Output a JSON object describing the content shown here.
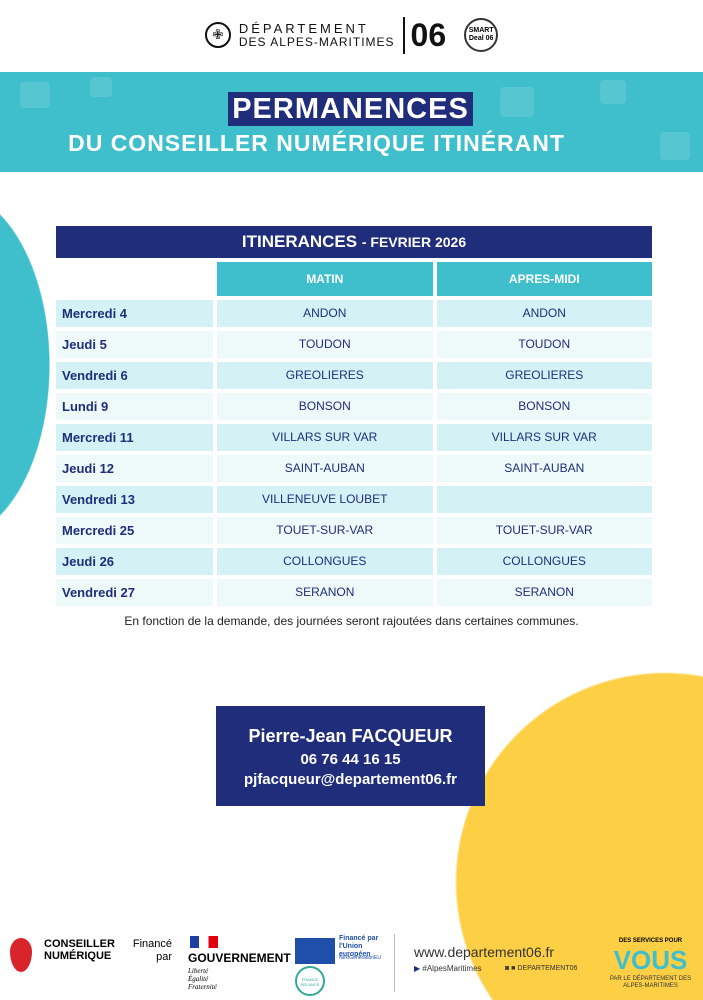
{
  "header": {
    "org_line1": "DÉPARTEMENT",
    "org_line2": "DES ALPES-MARITIMES",
    "org_number": "06",
    "smart_deal": "SMART Deal 06"
  },
  "banner": {
    "title": "PERMANENCES",
    "subtitle": "DU CONSEILLER NUMÉRIQUE ITINÉRANT"
  },
  "table": {
    "title": "ITINERANCES",
    "title_month": "- FEVRIER 2026",
    "columns": [
      "MATIN",
      "APRES-MIDI"
    ],
    "rows": [
      {
        "day": "Mercredi 4",
        "matin": "ANDON",
        "apres": "ANDON"
      },
      {
        "day": "Jeudi 5",
        "matin": "TOUDON",
        "apres": "TOUDON"
      },
      {
        "day": "Vendredi 6",
        "matin": "GREOLIERES",
        "apres": "GREOLIERES"
      },
      {
        "day": "Lundi 9",
        "matin": "BONSON",
        "apres": "BONSON"
      },
      {
        "day": "Mercredi 11",
        "matin": "VILLARS SUR VAR",
        "apres": "VILLARS SUR VAR"
      },
      {
        "day": "Jeudi 12",
        "matin": "SAINT-AUBAN",
        "apres": "SAINT-AUBAN"
      },
      {
        "day": "Vendredi 13",
        "matin": "VILLENEUVE LOUBET",
        "apres": ""
      },
      {
        "day": "Mercredi 25",
        "matin": "TOUET-SUR-VAR",
        "apres": "TOUET-SUR-VAR"
      },
      {
        "day": "Jeudi 26",
        "matin": "COLLONGUES",
        "apres": "COLLONGUES"
      },
      {
        "day": "Vendredi 27",
        "matin": "SERANON",
        "apres": "SERANON"
      }
    ]
  },
  "note": "En fonction de la demande, des journées seront rajoutées dans certaines communes.",
  "contact": {
    "name": "Pierre-Jean FACQUEUR",
    "phone": "06 76 44 16 15",
    "email": "pjfacqueur@departement06.fr"
  },
  "footer": {
    "conseiller": "CONSEILLER NUMÉRIQUE",
    "finance": "Financé par",
    "gouv": "GOUVERNEMENT",
    "devise": "Liberté Égalité Fraternité",
    "eu": "Financé par l'Union européen",
    "eu_sub": "NextGenerationEU",
    "relance": "FRANCE RELANCE",
    "website": "www.departement06.fr",
    "twitter": "#AlpesMaritimes",
    "social": "DEPARTEMENT06",
    "services_top": "DES SERVICES POUR",
    "services_big": "VOUS",
    "services_bottom": "PAR LE DÉPARTEMENT DES ALPES-MARITIMES"
  },
  "colors": {
    "navy": "#1f2d7b",
    "teal": "#3fbfcb",
    "yellow": "#fccf45"
  }
}
